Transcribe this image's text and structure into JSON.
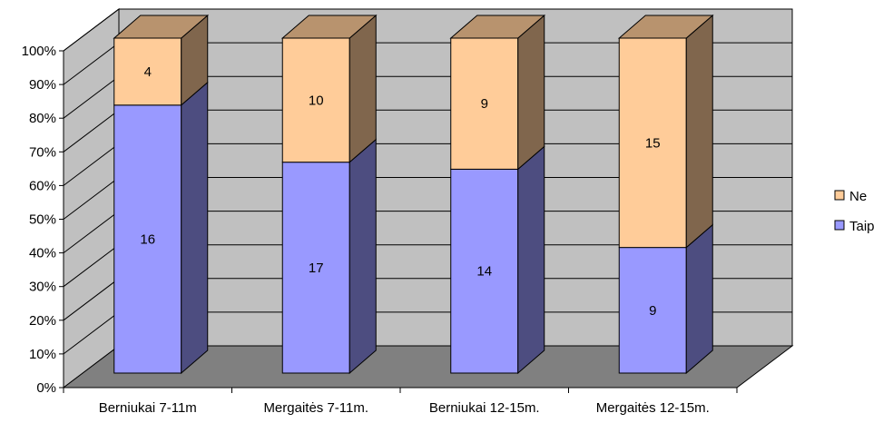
{
  "chart_data": {
    "type": "bar",
    "stacked": "percent",
    "three_d": true,
    "title": "",
    "xlabel": "",
    "ylabel": "",
    "categories": [
      "Berniukai 7-11m",
      "Mergaitės 7-11m.",
      "Berniukai 12-15m.",
      "Mergaitės 12-15m."
    ],
    "series": [
      {
        "name": "Taip",
        "values": [
          16,
          17,
          14,
          9
        ],
        "color": "#9999FF"
      },
      {
        "name": "Ne",
        "values": [
          4,
          10,
          9,
          15
        ],
        "color": "#FFCC99"
      }
    ],
    "y_ticks": [
      "0%",
      "10%",
      "20%",
      "30%",
      "40%",
      "50%",
      "60%",
      "70%",
      "80%",
      "90%",
      "100%"
    ],
    "ylim": [
      0,
      100
    ],
    "grid": true,
    "legend_position": "right",
    "wall_color": "#C0C0C0",
    "floor_color": "#808080"
  }
}
